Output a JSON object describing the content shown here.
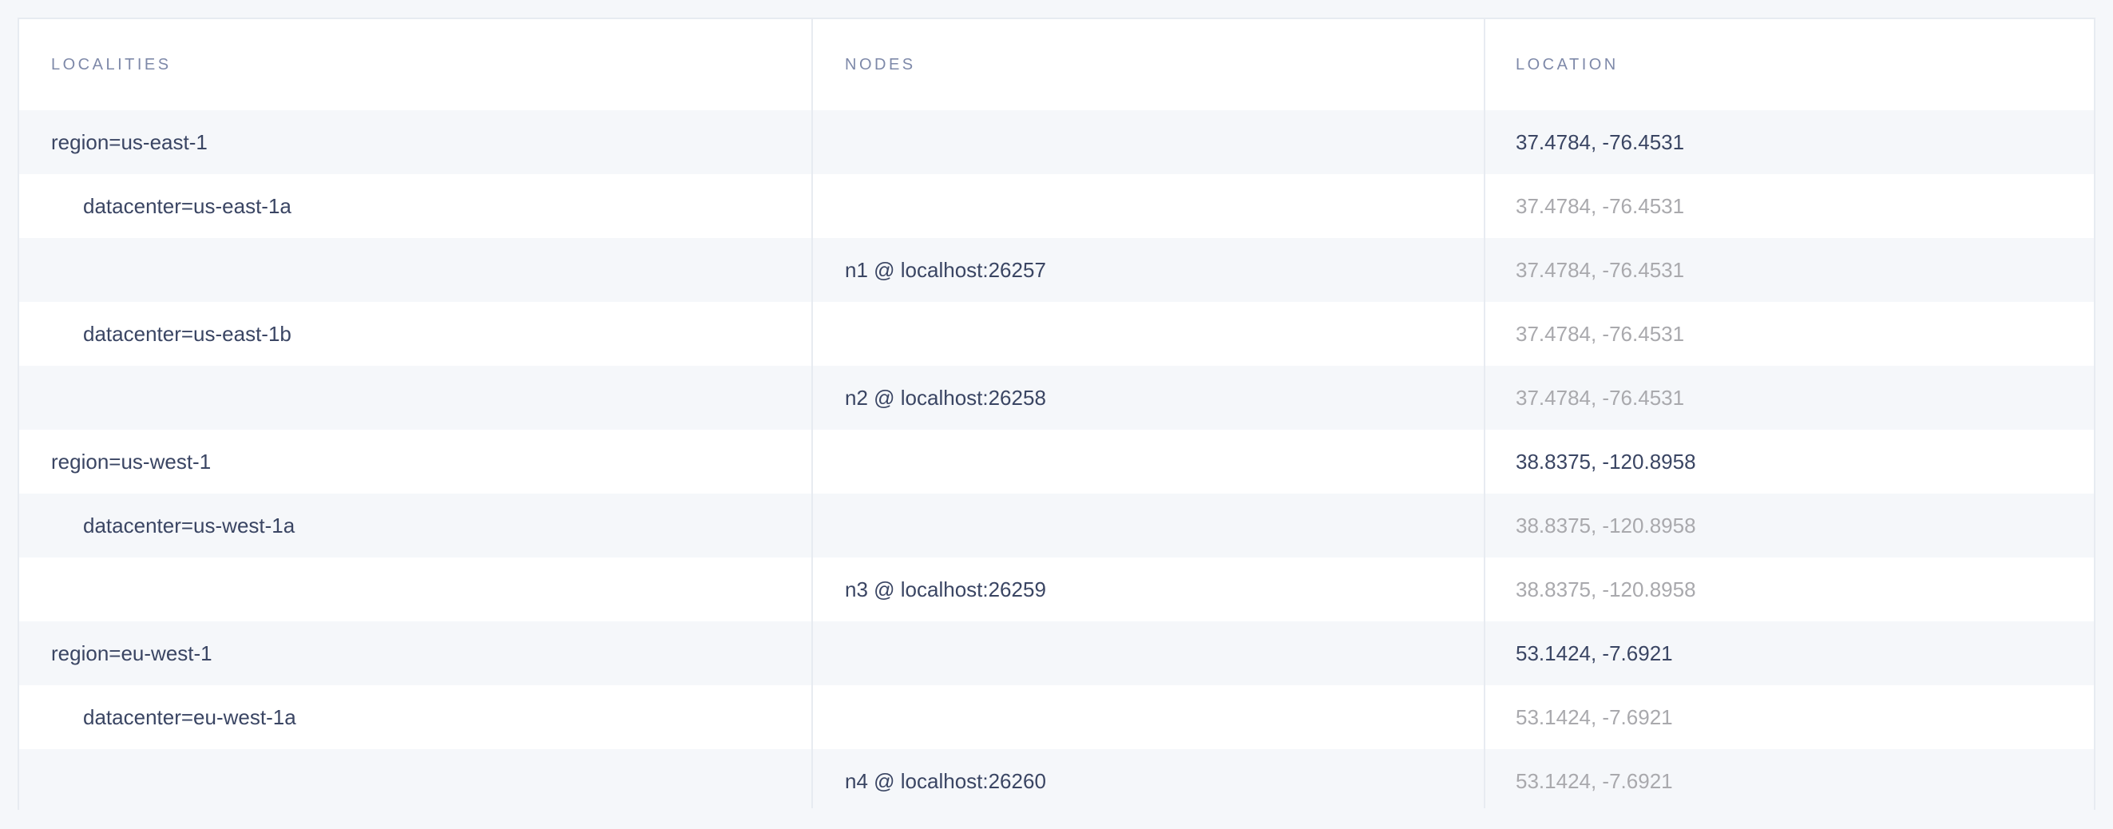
{
  "columns": {
    "localities": "LOCALITIES",
    "nodes": "NODES",
    "location": "LOCATION"
  },
  "rows": [
    {
      "locality": "region=us-east-1",
      "level": 0,
      "node": "",
      "location": "37.4784, -76.4531",
      "location_muted": false
    },
    {
      "locality": "datacenter=us-east-1a",
      "level": 1,
      "node": "",
      "location": "37.4784, -76.4531",
      "location_muted": true
    },
    {
      "locality": "",
      "level": 2,
      "node": "n1 @ localhost:26257",
      "location": "37.4784, -76.4531",
      "location_muted": true
    },
    {
      "locality": "datacenter=us-east-1b",
      "level": 1,
      "node": "",
      "location": "37.4784, -76.4531",
      "location_muted": true
    },
    {
      "locality": "",
      "level": 2,
      "node": "n2 @ localhost:26258",
      "location": "37.4784, -76.4531",
      "location_muted": true
    },
    {
      "locality": "region=us-west-1",
      "level": 0,
      "node": "",
      "location": "38.8375, -120.8958",
      "location_muted": false
    },
    {
      "locality": "datacenter=us-west-1a",
      "level": 1,
      "node": "",
      "location": "38.8375, -120.8958",
      "location_muted": true
    },
    {
      "locality": "",
      "level": 2,
      "node": "n3 @ localhost:26259",
      "location": "38.8375, -120.8958",
      "location_muted": true
    },
    {
      "locality": "region=eu-west-1",
      "level": 0,
      "node": "",
      "location": "53.1424, -7.6921",
      "location_muted": false
    },
    {
      "locality": "datacenter=eu-west-1a",
      "level": 1,
      "node": "",
      "location": "53.1424, -7.6921",
      "location_muted": true
    },
    {
      "locality": "",
      "level": 2,
      "node": "n4 @ localhost:26260",
      "location": "53.1424, -7.6921",
      "location_muted": true
    }
  ],
  "colors": {
    "text": "#3a4563",
    "header": "#7e89a9",
    "muted": "#a9a9ad",
    "stripe": "#f5f7fa"
  }
}
